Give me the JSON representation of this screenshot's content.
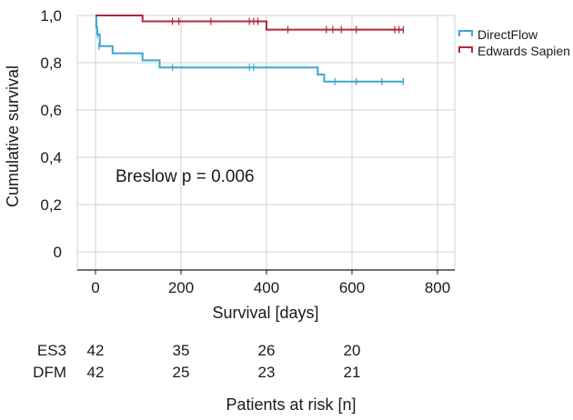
{
  "chart_data": {
    "type": "line",
    "title": "",
    "xlabel": "Survival [days]",
    "ylabel": "Cumulative survival",
    "xlim": [
      0,
      800
    ],
    "ylim": [
      0,
      1.0
    ],
    "x_ticks": [
      0,
      200,
      400,
      600,
      800
    ],
    "x_tick_labels": [
      "0",
      "200",
      "400",
      "600",
      "800"
    ],
    "y_ticks": [
      0,
      0.2,
      0.4,
      0.6,
      0.8,
      1.0
    ],
    "y_tick_labels": [
      "0",
      "0,2",
      "0,4",
      "0,6",
      "0,8",
      "1,0"
    ],
    "grid": true,
    "legend_position": "top-right",
    "series": [
      {
        "name": "DirectFlow",
        "color": "#3aa6d4",
        "step_x": [
          0,
          2,
          4,
          10,
          40,
          110,
          150,
          520,
          535,
          720
        ],
        "step_y": [
          1.0,
          0.95,
          0.92,
          0.87,
          0.84,
          0.81,
          0.78,
          0.75,
          0.72,
          0.72
        ],
        "censor_x": [
          5,
          8,
          180,
          360,
          370,
          560,
          610,
          670,
          720
        ],
        "censor_y": [
          0.92,
          0.87,
          0.78,
          0.78,
          0.78,
          0.72,
          0.72,
          0.72,
          0.72
        ]
      },
      {
        "name": "Edwards Sapien",
        "color": "#b5253f",
        "step_x": [
          0,
          110,
          400,
          720
        ],
        "step_y": [
          1.0,
          0.975,
          0.94,
          0.94
        ],
        "censor_x": [
          180,
          195,
          270,
          360,
          370,
          380,
          450,
          540,
          555,
          575,
          610,
          700,
          710,
          720
        ],
        "censor_y": [
          0.975,
          0.975,
          0.975,
          0.975,
          0.975,
          0.975,
          0.94,
          0.94,
          0.94,
          0.94,
          0.94,
          0.94,
          0.94,
          0.94
        ]
      }
    ],
    "annotations": [
      {
        "text": "Breslow p = 0.006"
      }
    ],
    "at_risk": {
      "title": "Patients at risk [n]",
      "times": [
        0,
        200,
        400,
        600
      ],
      "rows": [
        {
          "label": "ES3",
          "values": [
            "42",
            "35",
            "26",
            "20"
          ]
        },
        {
          "label": "DFM",
          "values": [
            "42",
            "25",
            "23",
            "21"
          ]
        }
      ]
    }
  }
}
